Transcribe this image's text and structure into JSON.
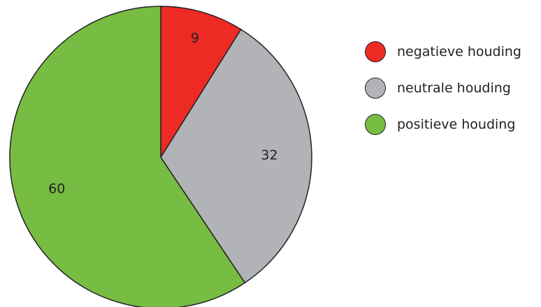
{
  "chart_data": {
    "type": "pie",
    "categories": [
      "negatieve houding",
      "neutrale houding",
      "positieve houding"
    ],
    "values": [
      9,
      32,
      60
    ],
    "data_labels": [
      "9",
      "32",
      "60"
    ],
    "colors": [
      "#ee2a24",
      "#b1b3b6",
      "#77bc43"
    ],
    "start_angle": "12 o'clock",
    "direction": "clockwise",
    "legend_position": "right",
    "title": "",
    "xlabel": "",
    "ylabel": ""
  }
}
